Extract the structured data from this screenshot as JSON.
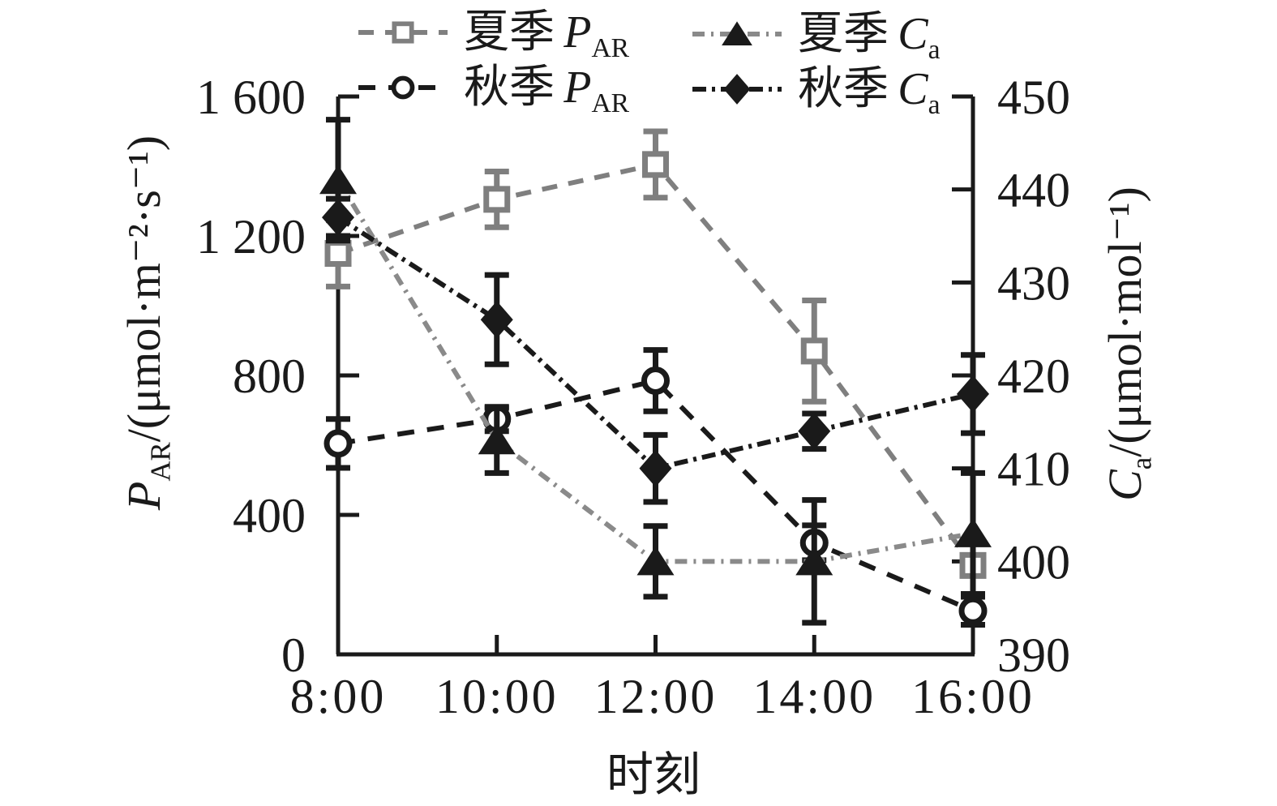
{
  "chart_data": {
    "type": "line",
    "title": "",
    "categories": [
      "8:00",
      "10:00",
      "12:00",
      "14:00",
      "16:00"
    ],
    "x_axis": {
      "label": "时刻"
    },
    "left_axis": {
      "label_var": "P",
      "label_sub": "AR",
      "label_unit": "/(μmol·m⁻²·s⁻¹)",
      "min": 0,
      "max": 1600,
      "ticks": [
        0,
        400,
        800,
        1200,
        1600
      ],
      "tick_labels": [
        "0",
        "400",
        "800",
        "1 200",
        "1 600"
      ]
    },
    "right_axis": {
      "label_var": "C",
      "label_sub": "a",
      "label_unit": "/(μmol·mol⁻¹)",
      "min": 390,
      "max": 450,
      "ticks": [
        390,
        400,
        410,
        420,
        430,
        440,
        450
      ],
      "tick_labels": [
        "390",
        "400",
        "410",
        "420",
        "430",
        "440",
        "450"
      ]
    },
    "legend_position": "top",
    "grid": false,
    "series": [
      {
        "name_cjk": "夏季",
        "name_var": "P",
        "name_sub": "AR",
        "axis": "left",
        "color": "#7f7f7f",
        "err_color": "#7f7f7f",
        "marker": "square-open",
        "marker_color": "#7f7f7f",
        "dash": "19 14",
        "values": [
          1150,
          1305,
          1405,
          870,
          255
        ],
        "errors": [
          95,
          80,
          95,
          145,
          25
        ]
      },
      {
        "name_cjk": "秋季",
        "name_var": "P",
        "name_sub": "AR",
        "axis": "left",
        "color": "#1a1a1a",
        "err_color": "#1a1a1a",
        "marker": "circle-open",
        "marker_color": "#1a1a1a",
        "dash": "21 16",
        "values": [
          605,
          675,
          785,
          320,
          125
        ],
        "errors": [
          70,
          35,
          88,
          50,
          40
        ]
      },
      {
        "name_cjk": "夏季",
        "name_var": "C",
        "name_sub": "a",
        "axis": "right",
        "color": "#8a8a8a",
        "err_color": "#1a1a1a",
        "marker": "triangle-filled",
        "marker_color": "#1a1a1a",
        "dash": "15 8 3 8",
        "values": [
          441,
          413,
          400,
          400,
          403
        ],
        "errors": [
          6.5,
          3.5,
          3.8,
          6.6,
          6.5
        ]
      },
      {
        "name_cjk": "秋季",
        "name_var": "C",
        "name_sub": "a",
        "axis": "right",
        "color": "#1a1a1a",
        "err_color": "#1a1a1a",
        "marker": "diamond-filled",
        "marker_color": "#1a1a1a",
        "dash": "17 7 4 7",
        "values": [
          437,
          426,
          410,
          414,
          418
        ],
        "errors": [
          2,
          4.8,
          3.6,
          1.9,
          4.2
        ]
      }
    ],
    "axis_color": "#1a1a1a"
  }
}
